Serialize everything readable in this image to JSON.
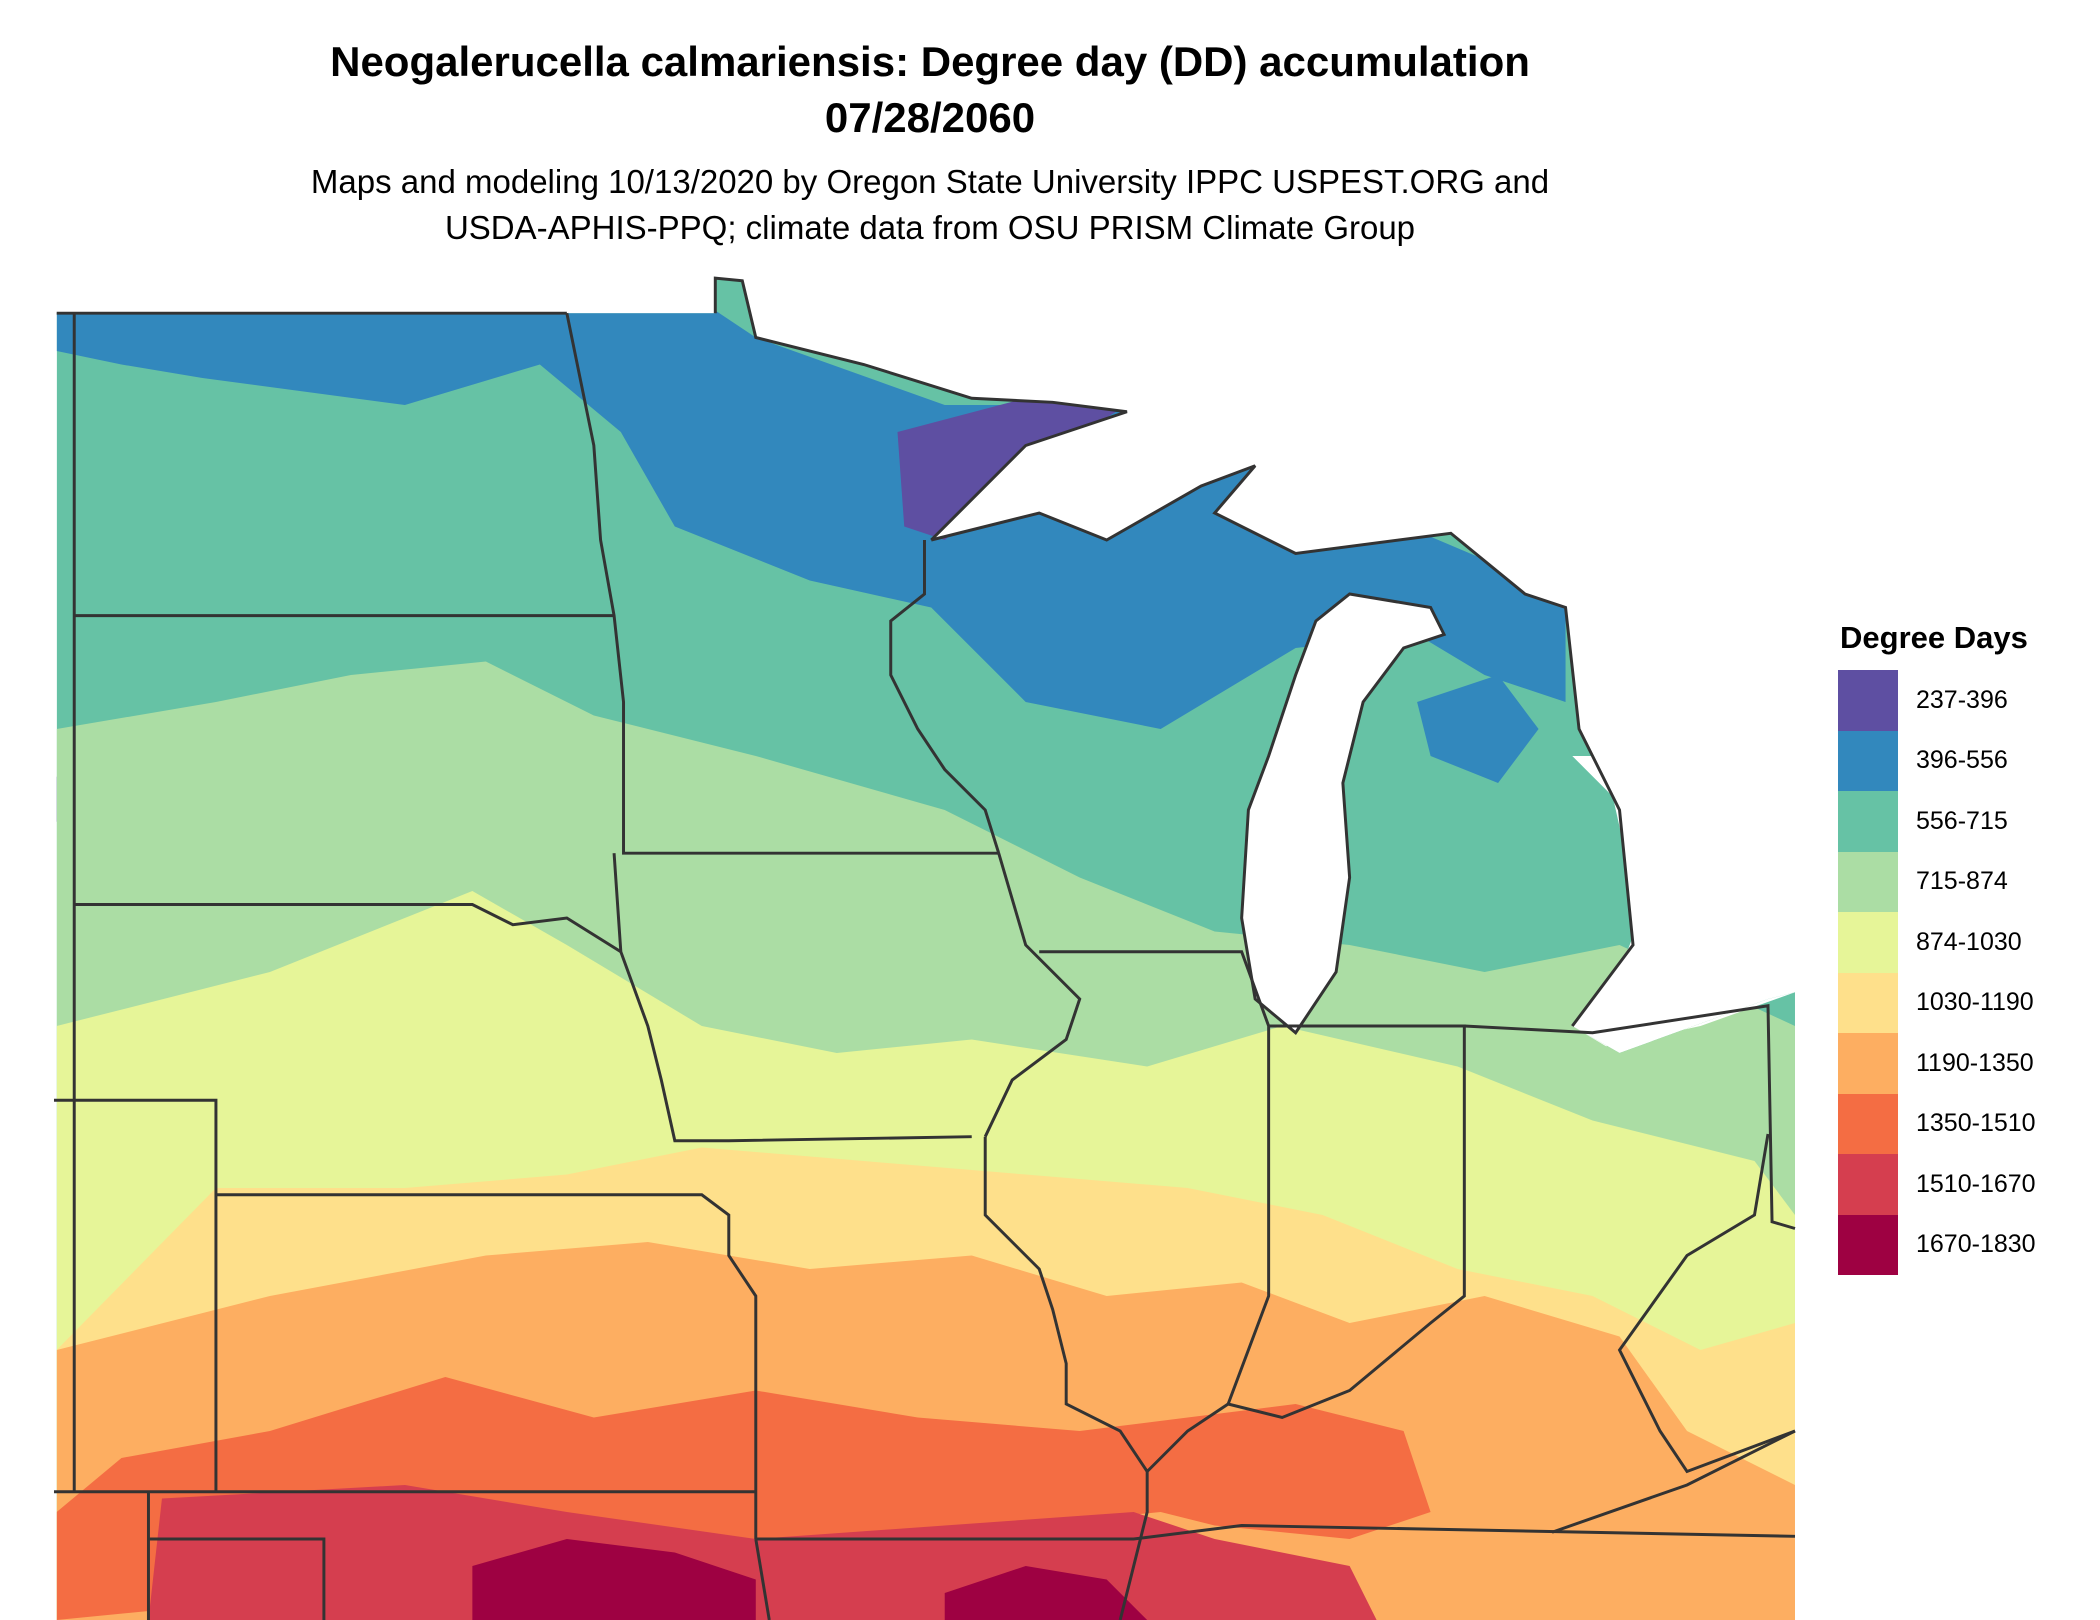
{
  "title": "Neogalerucella calmariensis: Degree day (DD) accumulation",
  "date": "07/28/2060",
  "subtitle_line1": "Maps and modeling 10/13/2020 by Oregon State University IPPC USPEST.ORG and",
  "subtitle_line2": "USDA-APHIS-PPQ; climate data from OSU PRISM Climate Group",
  "legend": {
    "title": "Degree Days",
    "items": [
      {
        "label": "237-396",
        "color": "#5e4fa2"
      },
      {
        "label": "396-556",
        "color": "#3288bd"
      },
      {
        "label": "556-715",
        "color": "#66c2a5"
      },
      {
        "label": "715-874",
        "color": "#abdda4"
      },
      {
        "label": "874-1030",
        "color": "#e6f598"
      },
      {
        "label": "1030-1190",
        "color": "#fee08b"
      },
      {
        "label": "1190-1350",
        "color": "#fdae61"
      },
      {
        "label": "1350-1510",
        "color": "#f46d43"
      },
      {
        "label": "1510-1670",
        "color": "#d53e4f"
      },
      {
        "label": "1670-1830",
        "color": "#9e0142"
      }
    ]
  }
}
